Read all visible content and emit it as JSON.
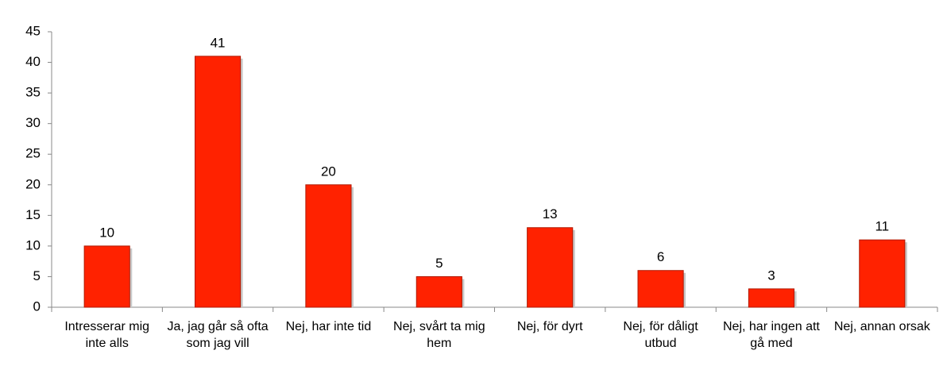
{
  "chart_data": {
    "type": "bar",
    "categories": [
      "Intresserar mig inte alls",
      "Ja, jag går så ofta som jag vill",
      "Nej, har inte tid",
      "Nej, svårt ta mig hem",
      "Nej, för dyrt",
      "Nej, för dåligt utbud",
      "Nej, har ingen att gå med",
      "Nej, annan orsak"
    ],
    "values": [
      10,
      41,
      20,
      5,
      13,
      6,
      3,
      11
    ],
    "color": "#ff2200",
    "ylim": [
      0,
      45
    ],
    "yticks": [
      0,
      5,
      10,
      15,
      20,
      25,
      30,
      35,
      40,
      45
    ],
    "grid": false
  }
}
